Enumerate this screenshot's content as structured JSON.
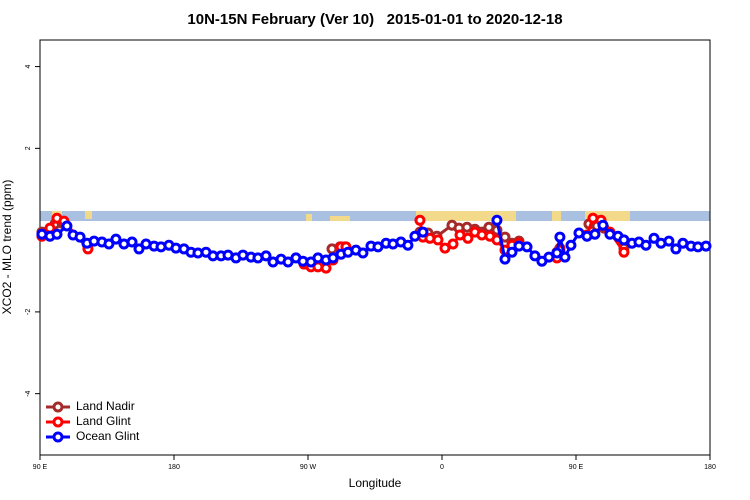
{
  "chart_data": {
    "type": "line",
    "title": "10N-15N February (Ver 10)   2015-01-01 to 2020-12-18",
    "xlabel": "Longitude",
    "ylabel": "XCO2 - MLO trend (ppm)",
    "xlim": [
      90,
      540
    ],
    "xticks": [
      {
        "value": 90,
        "label": "90 E"
      },
      180,
      {
        "value": 270,
        "label": "90 W"
      },
      {
        "value": 360,
        "label": "0"
      },
      {
        "value": 450,
        "label": "90 E"
      },
      {
        "value": 540,
        "label": "180"
      }
    ],
    "ylim": [
      -5.5,
      4.65
    ],
    "yticks": [
      -4,
      -2,
      2,
      4
    ],
    "legend": "bottom-left",
    "series": [
      {
        "name": "Land Nadir",
        "color": "#a52a2a",
        "x": [
          91.3,
          100.1,
          104.8,
          121.6,
          200,
          286.1,
          291.5,
          294.8,
          320,
          345.2,
          350.6,
          356.6,
          366.7,
          371.4,
          376.8,
          382.1,
          386.8,
          391.5,
          396.9,
          402.3,
          407.0,
          411.7,
          430,
          437.2,
          439.2,
          450,
          458.7,
          464.1,
          468.8,
          482.2
        ],
        "values": [
          -0.05,
          0.15,
          0.17,
          -0.34,
          null,
          -0.46,
          -0.41,
          -0.41,
          null,
          -0.05,
          -0.07,
          -0.15,
          0.12,
          0.05,
          0.07,
          0.02,
          -0.05,
          0.07,
          0,
          -0.17,
          -0.32,
          -0.27,
          null,
          -0.54,
          -0.44,
          null,
          0.15,
          0.1,
          0.05,
          -0.44
        ]
      },
      {
        "name": "Land Glint",
        "color": "#ff0000",
        "x": [
          91.3,
          96.7,
          101.4,
          106.1,
          122.2,
          200,
          267.3,
          272.0,
          276.7,
          282.1,
          286.8,
          292.2,
          295.5,
          320,
          345.2,
          347.2,
          351.9,
          357.3,
          362.0,
          367.4,
          372.1,
          377.4,
          382.1,
          386.8,
          392.2,
          396.9,
          402.3,
          407.0,
          411.7,
          430,
          437.2,
          439.2,
          450,
          457.4,
          461.4,
          466.8,
          472.8,
          482.2
        ],
        "values": [
          -0.15,
          0.05,
          0.29,
          0.22,
          -0.46,
          null,
          -0.83,
          -0.9,
          -0.9,
          -0.93,
          -0.73,
          -0.41,
          -0.41,
          null,
          0.24,
          -0.17,
          -0.2,
          -0.24,
          -0.44,
          -0.34,
          -0.12,
          -0.2,
          -0.05,
          -0.12,
          -0.15,
          -0.24,
          -0.49,
          -0.37,
          -0.32,
          null,
          -0.68,
          -0.49,
          null,
          -0.12,
          0.29,
          0.24,
          -0.05,
          -0.54
        ]
      },
      {
        "name": "Ocean Glint",
        "color": "#0000ff",
        "x": [
          91.3,
          96.7,
          101.4,
          108.1,
          112.2,
          116.9,
          121.6,
          126.3,
          131.6,
          136.3,
          141.0,
          146.4,
          151.8,
          156.5,
          161.2,
          166.6,
          171.3,
          176.6,
          181.3,
          186.7,
          191.4,
          196.1,
          201.5,
          206.2,
          211.6,
          216.3,
          221.6,
          226.3,
          231.7,
          236.4,
          241.8,
          246.5,
          251.9,
          256.6,
          261.9,
          266.6,
          272.0,
          276.7,
          282.1,
          286.8,
          292.2,
          296.9,
          302.2,
          306.9,
          312.3,
          317.0,
          322.4,
          327.1,
          332.4,
          337.1,
          341.8,
          347.2,
          372.1,
          396.9,
          402.3,
          407.0,
          411.7,
          417.1,
          422.4,
          427.1,
          431.8,
          437.2,
          439.2,
          442.6,
          446.6,
          452.0,
          457.4,
          462.7,
          468.1,
          472.8,
          478.2,
          482.2,
          487.6,
          492.3,
          497.0,
          502.4,
          507.1,
          512.4,
          517.1,
          521.8,
          527.2,
          531.9,
          537.3
        ],
        "values": [
          -0.1,
          -0.15,
          -0.1,
          0.1,
          -0.12,
          -0.17,
          -0.32,
          -0.27,
          -0.29,
          -0.34,
          -0.22,
          -0.34,
          -0.29,
          -0.46,
          -0.34,
          -0.39,
          -0.41,
          -0.37,
          -0.44,
          -0.46,
          -0.54,
          -0.56,
          -0.54,
          -0.63,
          -0.63,
          -0.61,
          -0.68,
          -0.61,
          -0.66,
          -0.68,
          -0.63,
          -0.78,
          -0.71,
          -0.78,
          -0.68,
          -0.76,
          -0.78,
          -0.68,
          -0.73,
          -0.68,
          -0.59,
          -0.54,
          -0.49,
          -0.56,
          -0.39,
          -0.41,
          -0.32,
          -0.34,
          -0.29,
          -0.37,
          -0.15,
          -0.05,
          null,
          0.24,
          -0.71,
          -0.54,
          -0.39,
          -0.41,
          -0.63,
          -0.76,
          -0.66,
          -0.56,
          -0.17,
          -0.66,
          -0.37,
          -0.07,
          -0.15,
          -0.1,
          0.12,
          -0.1,
          -0.15,
          -0.24,
          -0.32,
          -0.29,
          -0.37,
          -0.2,
          -0.32,
          -0.27,
          -0.46,
          -0.32,
          -0.39,
          -0.41,
          -0.39
        ]
      }
    ]
  }
}
